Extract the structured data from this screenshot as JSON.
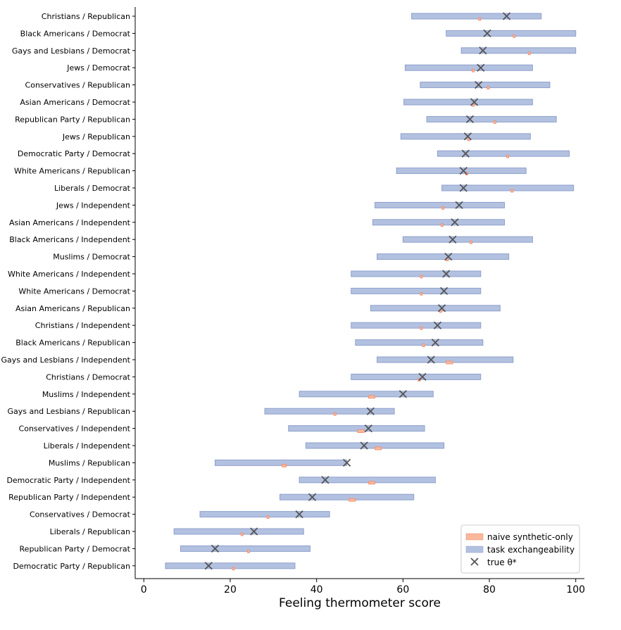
{
  "chart_data": {
    "type": "interval",
    "xlabel": "Feeling thermometer score",
    "ylabel": "",
    "xlim": [
      -2,
      102
    ],
    "xticks": [
      0,
      20,
      40,
      60,
      80,
      100
    ],
    "grid": false,
    "legend_position": "bottom-right",
    "legend": [
      {
        "key": "naive",
        "label": "naive synthetic-only",
        "color": "#f9b89c"
      },
      {
        "key": "task",
        "label": "task exchangeability",
        "color": "#b3c1e0"
      },
      {
        "key": "theta",
        "label": "true θ*",
        "color": "#555555"
      }
    ],
    "categories": [
      "Christians / Republican",
      "Black Americans / Democrat",
      "Gays and Lesbians / Democrat",
      "Jews / Democrat",
      "Conservatives / Republican",
      "Asian Americans / Democrat",
      "Republican Party / Republican",
      "Jews / Republican",
      "Democratic Party / Democrat",
      "White Americans / Republican",
      "Liberals / Democrat",
      "Jews / Independent",
      "Asian Americans / Independent",
      "Black Americans / Independent",
      "Muslims / Democrat",
      "White Americans / Independent",
      "White Americans / Democrat",
      "Asian Americans / Republican",
      "Christians / Independent",
      "Black Americans / Republican",
      "Gays and Lesbians / Independent",
      "Christians / Democrat",
      "Muslims / Independent",
      "Gays and Lesbians / Republican",
      "Conservatives / Independent",
      "Liberals / Independent",
      "Muslims / Republican",
      "Democratic Party / Independent",
      "Republican Party / Independent",
      "Conservatives / Democrat",
      "Liberals / Republican",
      "Republican Party / Democrat",
      "Democratic Party / Republican"
    ],
    "task_exchangeability": [
      [
        62,
        92
      ],
      [
        70,
        100
      ],
      [
        73.5,
        100
      ],
      [
        60.5,
        90
      ],
      [
        64,
        94
      ],
      [
        60.2,
        90
      ],
      [
        65.5,
        95.5
      ],
      [
        59.5,
        89.5
      ],
      [
        68,
        98.5
      ],
      [
        58.5,
        88.5
      ],
      [
        69,
        99.5
      ],
      [
        53.5,
        83.5
      ],
      [
        53,
        83.5
      ],
      [
        60,
        90
      ],
      [
        54,
        84.5
      ],
      [
        48,
        78
      ],
      [
        48,
        78
      ],
      [
        52.5,
        82.5
      ],
      [
        48,
        78
      ],
      [
        49,
        78.5
      ],
      [
        54,
        85.5
      ],
      [
        48,
        78
      ],
      [
        36,
        67
      ],
      [
        28,
        58
      ],
      [
        33.5,
        65
      ],
      [
        37.5,
        69.5
      ],
      [
        16.5,
        47
      ],
      [
        36,
        67.5
      ],
      [
        31.5,
        62.5
      ],
      [
        13,
        43
      ],
      [
        7,
        37
      ],
      [
        8.5,
        38.5
      ],
      [
        5,
        35
      ]
    ],
    "naive_synthetic_only": [
      [
        77.5,
        78
      ],
      [
        85.5,
        86
      ],
      [
        89,
        89.5
      ],
      [
        76,
        76.5
      ],
      [
        79.5,
        80
      ],
      [
        76,
        76.5
      ],
      [
        81,
        81.5
      ],
      [
        75,
        75.5
      ],
      [
        84,
        84.5
      ],
      [
        74.5,
        75
      ],
      [
        85,
        85.5
      ],
      [
        69,
        69.5
      ],
      [
        68.8,
        69.3
      ],
      [
        75.5,
        76
      ],
      [
        70,
        70.5
      ],
      [
        64,
        64.5
      ],
      [
        64,
        64.5
      ],
      [
        68.5,
        69
      ],
      [
        64,
        64.5
      ],
      [
        64.5,
        65
      ],
      [
        70,
        71.5
      ],
      [
        63.5,
        64
      ],
      [
        52,
        53.5
      ],
      [
        44,
        44.5
      ],
      [
        49.5,
        51
      ],
      [
        53.5,
        55
      ],
      [
        32,
        33
      ],
      [
        52,
        53.5
      ],
      [
        47.5,
        49
      ],
      [
        28.5,
        29
      ],
      [
        22.5,
        23
      ],
      [
        24,
        24.5
      ],
      [
        20.5,
        21
      ]
    ],
    "true_theta": [
      84,
      79.5,
      78.5,
      78,
      77.5,
      76.5,
      75.5,
      75,
      74.5,
      74,
      74,
      73,
      72,
      71.5,
      70.5,
      70,
      69.5,
      69,
      68,
      67.5,
      66.5,
      64.5,
      60,
      52.5,
      52,
      51,
      47,
      42,
      39,
      36,
      25.5,
      16.5,
      15
    ]
  }
}
